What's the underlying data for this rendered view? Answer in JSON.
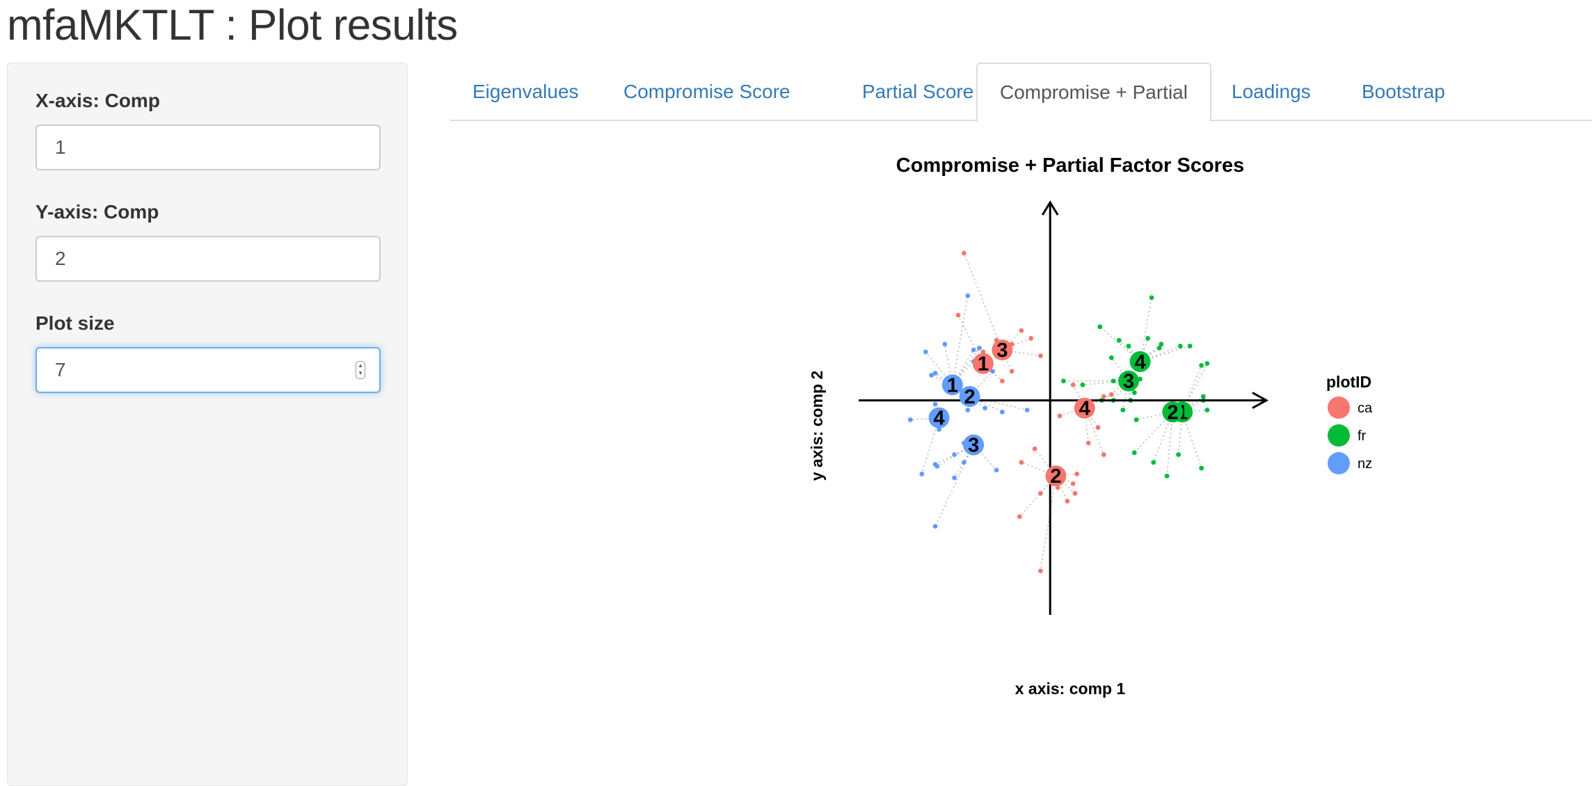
{
  "app": {
    "title": "mfaMKTLT : Plot results"
  },
  "sidebar": {
    "xaxis": {
      "label": "X-axis: Comp",
      "value": "1"
    },
    "yaxis": {
      "label": "Y-axis: Comp",
      "value": "2"
    },
    "plotsize": {
      "label": "Plot size",
      "value": "7"
    }
  },
  "tabs": [
    {
      "label": "Eigenvalues",
      "active": false
    },
    {
      "label": "Compromise Score",
      "active": false
    },
    {
      "label": "Partial Score",
      "active": false
    },
    {
      "label": "Compromise + Partial",
      "active": true
    },
    {
      "label": "Loadings",
      "active": false
    },
    {
      "label": "Bootstrap",
      "active": false
    }
  ],
  "chart_data": {
    "type": "scatter",
    "title": "Compromise + Partial Factor Scores",
    "xlabel": "x axis: comp 1",
    "ylabel": "y axis: comp 2",
    "xlim": [
      -1,
      1.1
    ],
    "ylim": [
      -1.1,
      1.0
    ],
    "legend": {
      "title": "plotID",
      "placement": "right"
    },
    "series": [
      {
        "name": "ca",
        "color": "#f8766d",
        "compromise": [
          {
            "label": "1",
            "x": -0.35,
            "y": 0.19
          },
          {
            "label": "2",
            "x": 0.03,
            "y": -0.39
          },
          {
            "label": "3",
            "x": -0.25,
            "y": 0.26
          },
          {
            "label": "4",
            "x": 0.18,
            "y": -0.04
          }
        ],
        "partial": [
          [
            -0.45,
            0.76
          ],
          [
            -0.48,
            0.44
          ],
          [
            -0.28,
            0.31
          ],
          [
            -0.15,
            0.36
          ],
          [
            -0.2,
            0.29
          ],
          [
            -0.1,
            0.32
          ],
          [
            -0.05,
            0.23
          ],
          [
            -0.2,
            0.15
          ],
          [
            -0.35,
            0.25
          ],
          [
            -0.25,
            0.1
          ],
          [
            0.12,
            0.08
          ],
          [
            0.05,
            -0.08
          ],
          [
            0.2,
            -0.22
          ],
          [
            0.28,
            -0.28
          ],
          [
            0.14,
            -0.38
          ],
          [
            0.25,
            -0.14
          ],
          [
            0.28,
            0.02
          ],
          [
            0.32,
            0.03
          ],
          [
            -0.08,
            -0.25
          ],
          [
            -0.15,
            -0.32
          ],
          [
            -0.16,
            -0.6
          ],
          [
            -0.05,
            -0.88
          ],
          [
            0.04,
            -0.45
          ],
          [
            0.13,
            -0.48
          ],
          [
            0.12,
            -0.43
          ],
          [
            0.09,
            -0.52
          ],
          [
            -0.05,
            -0.48
          ]
        ]
      },
      {
        "name": "fr",
        "color": "#00ba38",
        "compromise": [
          {
            "label": "1",
            "x": 0.69,
            "y": -0.06
          },
          {
            "label": "2",
            "x": 0.64,
            "y": -0.06
          },
          {
            "label": "3",
            "x": 0.41,
            "y": 0.1
          },
          {
            "label": "4",
            "x": 0.47,
            "y": 0.2
          }
        ],
        "partial": [
          [
            0.53,
            0.53
          ],
          [
            0.26,
            0.38
          ],
          [
            0.36,
            0.31
          ],
          [
            0.51,
            0.32
          ],
          [
            0.57,
            0.27
          ],
          [
            0.58,
            0.29
          ],
          [
            0.41,
            0.28
          ],
          [
            0.32,
            0.22
          ],
          [
            0.47,
            0.11
          ],
          [
            0.33,
            0.1
          ],
          [
            0.17,
            0.08
          ],
          [
            0.07,
            0.1
          ],
          [
            0.33,
            0.0
          ],
          [
            0.27,
            0.0
          ],
          [
            0.42,
            0.0
          ],
          [
            0.44,
            0.04
          ],
          [
            0.45,
            -0.1
          ],
          [
            0.38,
            -0.05
          ],
          [
            0.44,
            -0.27
          ],
          [
            0.54,
            -0.32
          ],
          [
            0.61,
            -0.39
          ],
          [
            0.67,
            -0.28
          ],
          [
            0.73,
            0.28
          ],
          [
            0.79,
            0.18
          ],
          [
            0.82,
            0.19
          ],
          [
            0.82,
            -0.05
          ],
          [
            0.79,
            -0.35
          ],
          [
            0.8,
            0.0
          ],
          [
            0.68,
            0.28
          ],
          [
            0.8,
            0.02
          ]
        ]
      },
      {
        "name": "nz",
        "color": "#619cff",
        "compromise": [
          {
            "label": "1",
            "x": -0.51,
            "y": 0.08
          },
          {
            "label": "2",
            "x": -0.42,
            "y": 0.02
          },
          {
            "label": "3",
            "x": -0.4,
            "y": -0.23
          },
          {
            "label": "4",
            "x": -0.58,
            "y": -0.09
          }
        ],
        "partial": [
          [
            -0.43,
            0.54
          ],
          [
            -0.65,
            0.25
          ],
          [
            -0.55,
            0.29
          ],
          [
            -0.4,
            0.26
          ],
          [
            -0.37,
            0.27
          ],
          [
            -0.4,
            0.2
          ],
          [
            -0.62,
            0.13
          ],
          [
            -0.6,
            0.14
          ],
          [
            -0.41,
            0.06
          ],
          [
            -0.3,
            0.15
          ],
          [
            -0.5,
            0.05
          ],
          [
            -0.6,
            -0.02
          ],
          [
            -0.73,
            -0.1
          ],
          [
            -0.58,
            -0.15
          ],
          [
            -0.25,
            -0.06
          ],
          [
            -0.12,
            -0.05
          ],
          [
            -0.45,
            -0.22
          ],
          [
            -0.5,
            -0.28
          ],
          [
            -0.45,
            -0.32
          ],
          [
            -0.28,
            -0.36
          ],
          [
            -0.59,
            -0.34
          ],
          [
            -0.67,
            -0.38
          ],
          [
            -0.6,
            -0.33
          ],
          [
            -0.5,
            -0.4
          ],
          [
            -0.43,
            -0.05
          ],
          [
            -0.34,
            -0.04
          ],
          [
            -0.6,
            -0.65
          ]
        ]
      }
    ]
  }
}
